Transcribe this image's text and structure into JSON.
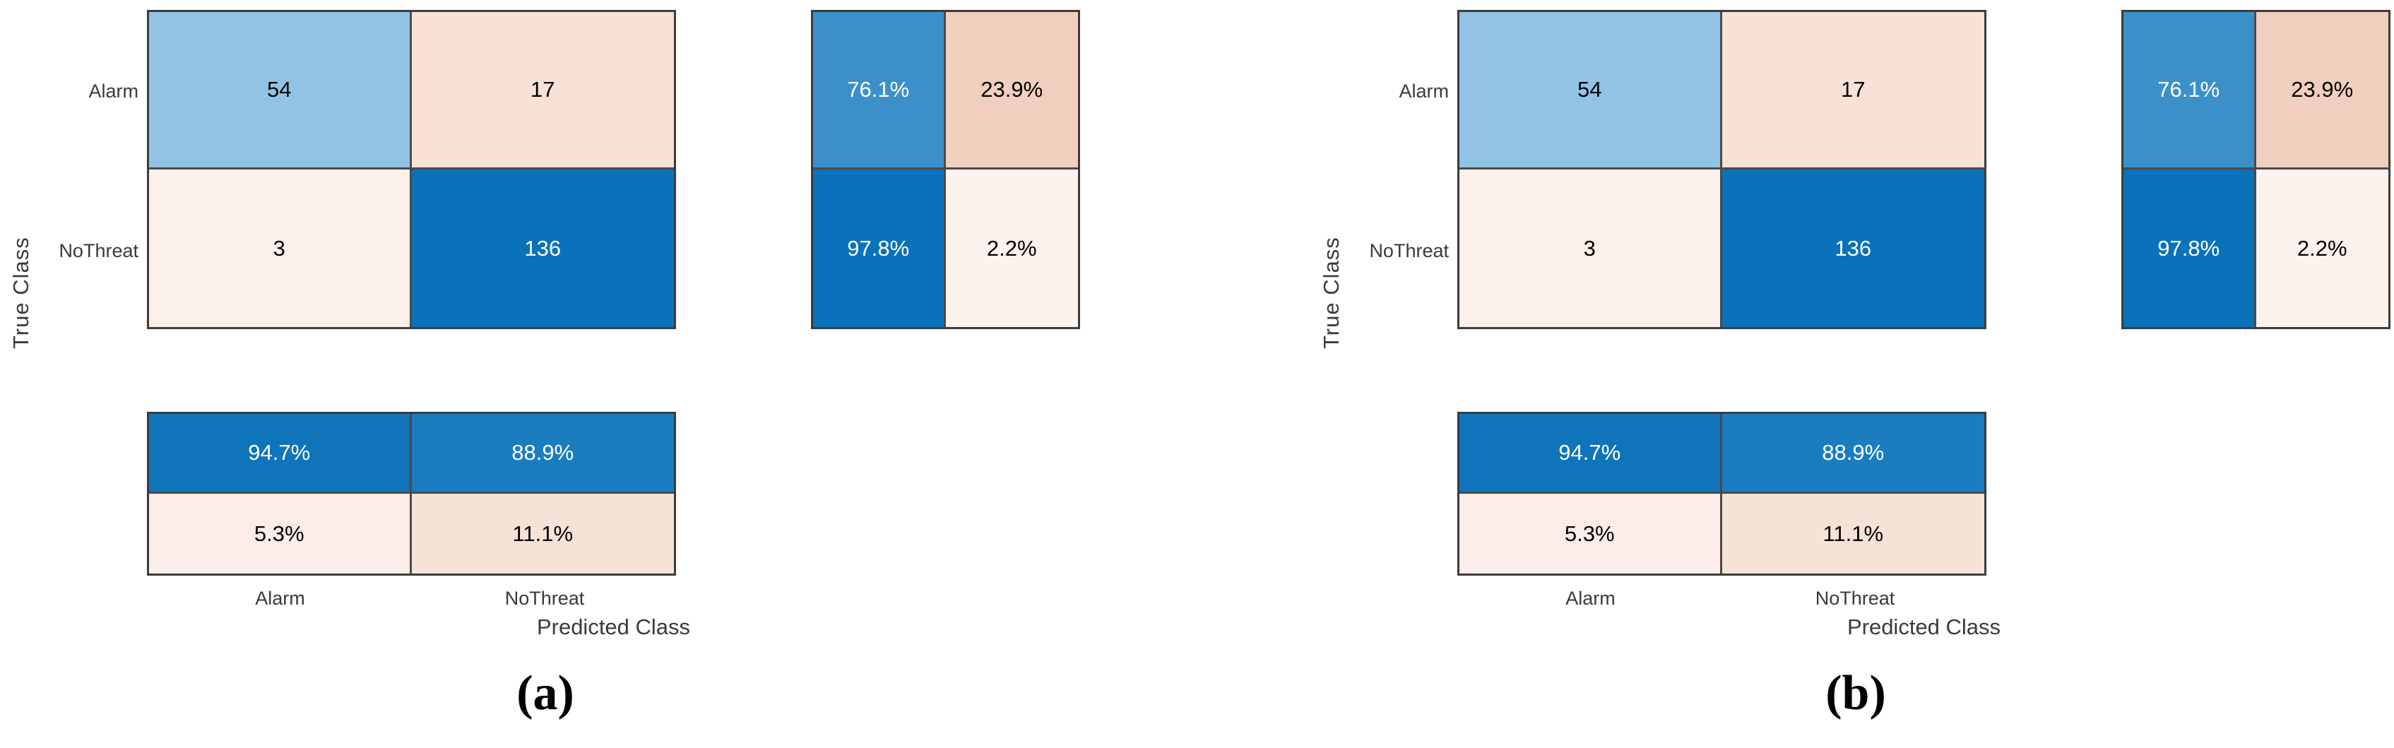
{
  "figure": {
    "background": "#ffffff",
    "border_color": "#3c3c3c",
    "strong_blue": "#0a72ba",
    "panels": [
      {
        "caption": "(a)",
        "axes": {
          "x": "Predicted Class",
          "y": "True Class"
        },
        "tick_labels": {
          "rows": [
            "Alarm",
            "NoThreat"
          ],
          "cols": [
            "Alarm",
            "NoThreat"
          ]
        },
        "main_cells": [
          {
            "label": "54",
            "bg": "#92c3e4",
            "fg": "#000000"
          },
          {
            "label": "17",
            "bg": "#f8e1d5",
            "fg": "#000000"
          },
          {
            "label": "3",
            "bg": "#fbf0ea",
            "fg": "#000000"
          },
          {
            "label": "136",
            "bg": "#0a72ba",
            "fg": "#ffffff"
          }
        ],
        "row_summary_cells": [
          {
            "label": "76.1%",
            "bg": "#3c90c9",
            "fg": "#ffffff"
          },
          {
            "label": "23.9%",
            "bg": "#f1cfbe",
            "fg": "#000000"
          },
          {
            "label": "97.8%",
            "bg": "#0a72ba",
            "fg": "#ffffff"
          },
          {
            "label": "2.2%",
            "bg": "#fdf2ee",
            "fg": "#000000"
          }
        ],
        "col_summary_cells": [
          {
            "label": "94.7%",
            "bg": "#0f74b9",
            "fg": "#ffffff"
          },
          {
            "label": "88.9%",
            "bg": "#1b7dc0",
            "fg": "#ffffff"
          },
          {
            "label": "5.3%",
            "bg": "#fbedea",
            "fg": "#000000"
          },
          {
            "label": "11.1%",
            "bg": "#f7e2d7",
            "fg": "#000000"
          }
        ]
      },
      {
        "caption": "(b)",
        "axes": {
          "x": "Predicted Class",
          "y": "True Class"
        },
        "tick_labels": {
          "rows": [
            "Alarm",
            "NoThreat"
          ],
          "cols": [
            "Alarm",
            "NoThreat"
          ]
        },
        "main_cells": [
          {
            "label": "54",
            "bg": "#92c3e4",
            "fg": "#000000"
          },
          {
            "label": "17",
            "bg": "#f8e1d5",
            "fg": "#000000"
          },
          {
            "label": "3",
            "bg": "#fbf0ea",
            "fg": "#000000"
          },
          {
            "label": "136",
            "bg": "#0a72ba",
            "fg": "#ffffff"
          }
        ],
        "row_summary_cells": [
          {
            "label": "76.1%",
            "bg": "#3c90c9",
            "fg": "#ffffff"
          },
          {
            "label": "23.9%",
            "bg": "#f1cfbe",
            "fg": "#000000"
          },
          {
            "label": "97.8%",
            "bg": "#0a72ba",
            "fg": "#ffffff"
          },
          {
            "label": "2.2%",
            "bg": "#fdf2ee",
            "fg": "#000000"
          }
        ],
        "col_summary_cells": [
          {
            "label": "94.7%",
            "bg": "#0f74b9",
            "fg": "#ffffff"
          },
          {
            "label": "88.9%",
            "bg": "#1b7dc0",
            "fg": "#ffffff"
          },
          {
            "label": "5.3%",
            "bg": "#fbedea",
            "fg": "#000000"
          },
          {
            "label": "11.1%",
            "bg": "#f7e2d7",
            "fg": "#000000"
          }
        ]
      }
    ]
  },
  "chart_data": [
    {
      "type": "heatmap",
      "subtype": "confusion-matrix",
      "panel": "(a)",
      "title": "",
      "xlabel": "Predicted Class",
      "ylabel": "True Class",
      "classes": [
        "Alarm",
        "NoThreat"
      ],
      "counts": [
        [
          54,
          17
        ],
        [
          3,
          136
        ]
      ],
      "row_normalized_pct": [
        [
          76.1,
          23.9
        ],
        [
          97.8,
          2.2
        ]
      ],
      "col_normalized_pct": [
        [
          94.7,
          88.9
        ],
        [
          5.3,
          11.1
        ]
      ],
      "legend": "none",
      "grid": "cell-borders"
    },
    {
      "type": "heatmap",
      "subtype": "confusion-matrix",
      "panel": "(b)",
      "title": "",
      "xlabel": "Predicted Class",
      "ylabel": "True Class",
      "classes": [
        "Alarm",
        "NoThreat"
      ],
      "counts": [
        [
          54,
          17
        ],
        [
          3,
          136
        ]
      ],
      "row_normalized_pct": [
        [
          76.1,
          23.9
        ],
        [
          97.8,
          2.2
        ]
      ],
      "col_normalized_pct": [
        [
          94.7,
          88.9
        ],
        [
          5.3,
          11.1
        ]
      ],
      "legend": "none",
      "grid": "cell-borders"
    }
  ]
}
